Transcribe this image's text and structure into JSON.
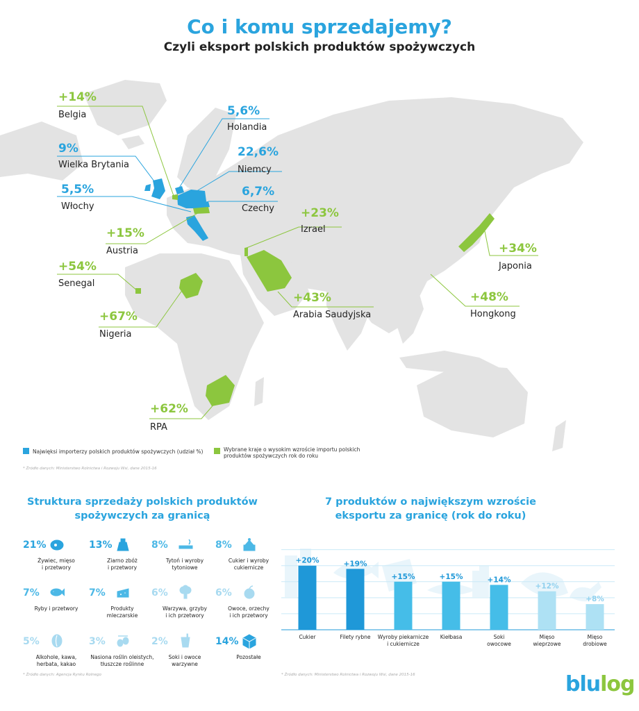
{
  "header": {
    "title": "Co i komu sprzedajemy?",
    "subtitle": "Czyli eksport polskich produktów spożywczych"
  },
  "colors": {
    "blue": "#2aa4de",
    "green": "#8cc63e",
    "map_land": "#e3e3e3"
  },
  "map": {
    "countries": [
      {
        "value": "+14%",
        "name": "Belgia",
        "type": "growth"
      },
      {
        "value": "5,6%",
        "name": "Holandia",
        "type": "share"
      },
      {
        "value": "9%",
        "name": "Wielka Brytania",
        "type": "share"
      },
      {
        "value": "22,6%",
        "name": "Niemcy",
        "type": "share"
      },
      {
        "value": "5,5%",
        "name": "Włochy",
        "type": "share"
      },
      {
        "value": "6,7%",
        "name": "Czechy",
        "type": "share"
      },
      {
        "value": "+23%",
        "name": "Izrael",
        "type": "growth"
      },
      {
        "value": "+15%",
        "name": "Austria",
        "type": "growth"
      },
      {
        "value": "+34%",
        "name": "Japonia",
        "type": "growth"
      },
      {
        "value": "+54%",
        "name": "Senegal",
        "type": "growth"
      },
      {
        "value": "+43%",
        "name": "Arabia Saudyjska",
        "type": "growth"
      },
      {
        "value": "+48%",
        "name": "Hongkong",
        "type": "growth"
      },
      {
        "value": "+67%",
        "name": "Nigeria",
        "type": "growth"
      },
      {
        "value": "+62%",
        "name": "RPA",
        "type": "growth"
      }
    ],
    "legend": {
      "blue": "Najwięksi importerzy polskich produktów spożywczych (udział %)",
      "green_line1": "Wybrane kraje o wysokim wzroście importu polskich",
      "green_line2": "produktów spożywczych rok do roku"
    },
    "source": "* Źródło danych: Ministerstwo Rolnictwa i Rozwoju Wsi, dane 2015-16"
  },
  "structure": {
    "title_line1": "Struktura sprzedaży polskich produktów",
    "title_line2": "spożywczych za granicą",
    "items": [
      {
        "pct": "21%",
        "l1": "Żywiec, mięso",
        "l2": "i przetwory",
        "icon": "steak-icon",
        "tone": "blue"
      },
      {
        "pct": "13%",
        "l1": "Ziarno zbóż",
        "l2": "i przetwory",
        "icon": "grain-sack-icon",
        "tone": "blue"
      },
      {
        "pct": "8%",
        "l1": "Tytoń i wyroby",
        "l2": "tytoniowe",
        "icon": "cigarette-icon",
        "tone": "sky"
      },
      {
        "pct": "8%",
        "l1": "Cukier i wyroby",
        "l2": "cukiernicze",
        "icon": "cake-icon",
        "tone": "sky"
      },
      {
        "pct": "7%",
        "l1": "Ryby i przetwory",
        "l2": "",
        "icon": "fish-icon",
        "tone": "sky"
      },
      {
        "pct": "7%",
        "l1": "Produkty",
        "l2": "mleczarskie",
        "icon": "cheese-icon",
        "tone": "sky"
      },
      {
        "pct": "6%",
        "l1": "Warzywa, grzyby",
        "l2": "i ich przetwory",
        "icon": "broccoli-icon",
        "tone": "pale"
      },
      {
        "pct": "6%",
        "l1": "Owoce, orzechy",
        "l2": "i ich przetwory",
        "icon": "apple-icon",
        "tone": "pale"
      },
      {
        "pct": "5%",
        "l1": "Alkohole, kawa,",
        "l2": "herbata, kakao",
        "icon": "coffee-bean-icon",
        "tone": "pale"
      },
      {
        "pct": "3%",
        "l1": "Nasiona roślin oleistych,",
        "l2": "tłuszcze roślinne",
        "icon": "olives-icon",
        "tone": "pale"
      },
      {
        "pct": "2%",
        "l1": "Soki i owoce",
        "l2": "warzywne",
        "icon": "juice-glass-icon",
        "tone": "pale"
      },
      {
        "pct": "14%",
        "l1": "Pozostałe",
        "l2": "",
        "icon": "box-icon",
        "tone": "blue"
      }
    ],
    "source": "* Źródło danych: Agencja Rynku Rolnego"
  },
  "chart_data": {
    "type": "bar",
    "title": "7 produktów o największym wzroście eksportu za granicę (rok do roku)",
    "categories": [
      "Cukier",
      "Filety rybne",
      "Wyroby piekarnicze i cukiernicze",
      "Kiełbasa",
      "Soki owocowe",
      "Mięso wieprzowe",
      "Mięso drobiowe"
    ],
    "values": [
      20,
      19,
      15,
      15,
      14,
      12,
      8
    ],
    "labels": [
      "+20%",
      "+19%",
      "+15%",
      "+15%",
      "+14%",
      "+12%",
      "+8%"
    ],
    "ylim": [
      0,
      26
    ],
    "grid": true
  },
  "growth_chart": {
    "title_line1": "7 produktów o największym wzroście",
    "title_line2": "eksportu za granicę (rok do roku)",
    "cat_lines": [
      [
        "Cukier"
      ],
      [
        "Filety rybne"
      ],
      [
        "Wyroby piekarnicze",
        "i cukiernicze"
      ],
      [
        "Kiełbasa"
      ],
      [
        "Soki",
        "owocowe"
      ],
      [
        "Mięso",
        "wieprzowe"
      ],
      [
        "Mięso",
        "drobiowe"
      ]
    ],
    "bar_colors": [
      "#1f98d8",
      "#1f98d8",
      "#45bde8",
      "#45bde8",
      "#45bde8",
      "#aee1f4",
      "#aee1f4"
    ],
    "source": "* Źródło danych: Ministerstwo Rolnictwa i Rozwoju Wsi, dane 2015-16"
  },
  "logo": {
    "part1": "blu",
    "part2": "log"
  }
}
